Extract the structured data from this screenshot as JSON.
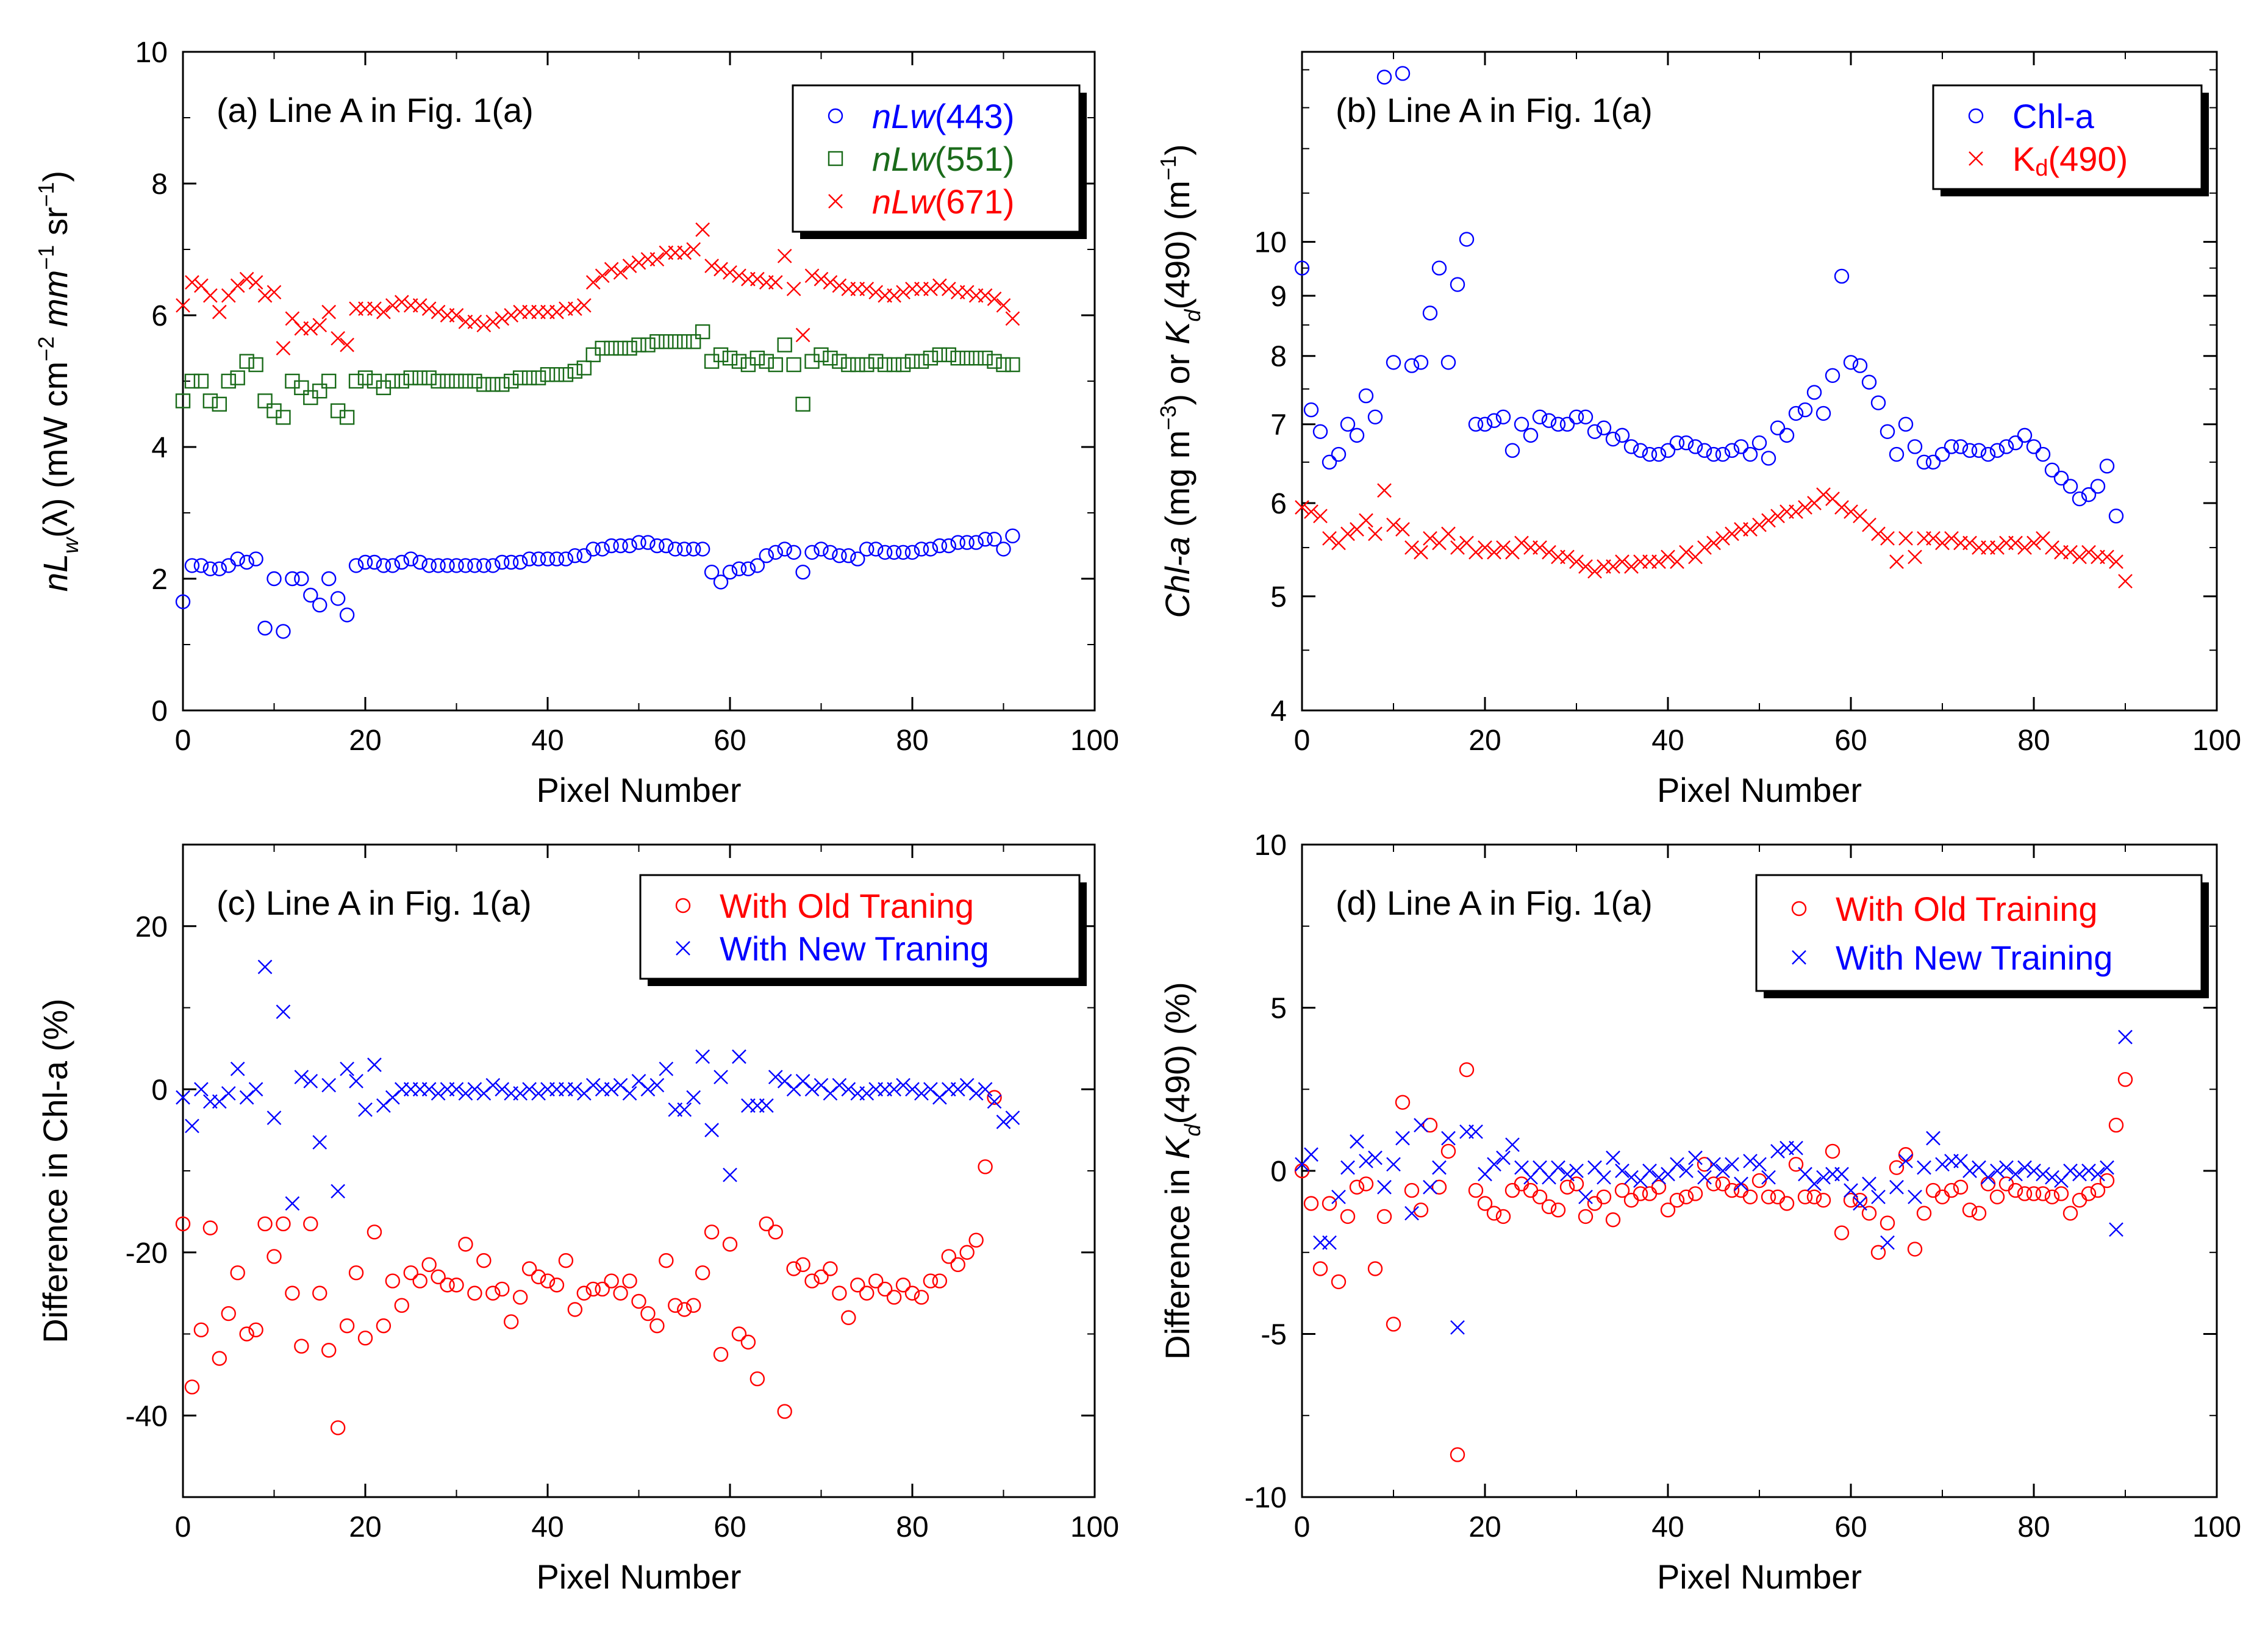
{
  "figure": {
    "panels_order": [
      "a",
      "b",
      "c",
      "d"
    ]
  },
  "chart_data": [
    {
      "id": "a",
      "type": "scatter",
      "title": "(a)  Line A in Fig. 1(a)",
      "xlabel": "Pixel Number",
      "ylabel": "nL_w(λ) (mW cm^-2 mm^-1 sr^-1)",
      "xlim": [
        0,
        100
      ],
      "ylim": [
        0,
        10
      ],
      "yscale": "linear",
      "xticks": [
        0,
        20,
        40,
        60,
        80,
        100
      ],
      "yticks": [
        0,
        2,
        4,
        6,
        8,
        10
      ],
      "grid": false,
      "legend": "top-right",
      "series": [
        {
          "name": "nLw(443)",
          "legend_prefix": "nLw",
          "legend_suffix": "(443)",
          "color": "#0000ff",
          "marker": "circle",
          "values": [
            1.65,
            2.2,
            2.2,
            2.15,
            2.15,
            2.2,
            2.3,
            2.25,
            2.3,
            1.25,
            2.0,
            1.2,
            2.0,
            2.0,
            1.75,
            1.6,
            2.0,
            1.7,
            1.45,
            2.2,
            2.25,
            2.25,
            2.2,
            2.2,
            2.25,
            2.3,
            2.25,
            2.2,
            2.2,
            2.2,
            2.2,
            2.2,
            2.2,
            2.2,
            2.2,
            2.25,
            2.25,
            2.25,
            2.3,
            2.3,
            2.3,
            2.3,
            2.3,
            2.35,
            2.35,
            2.45,
            2.45,
            2.5,
            2.5,
            2.5,
            2.55,
            2.55,
            2.5,
            2.5,
            2.45,
            2.45,
            2.45,
            2.45,
            2.1,
            1.95,
            2.1,
            2.15,
            2.15,
            2.2,
            2.35,
            2.4,
            2.45,
            2.4,
            2.1,
            2.4,
            2.45,
            2.4,
            2.35,
            2.35,
            2.3,
            2.45,
            2.45,
            2.4,
            2.4,
            2.4,
            2.4,
            2.45,
            2.45,
            2.5,
            2.5,
            2.55,
            2.55,
            2.55,
            2.6,
            2.6,
            2.45,
            2.65
          ]
        },
        {
          "name": "nLw(551)",
          "legend_prefix": "nLw",
          "legend_suffix": "(551)",
          "color": "#1a6b1a",
          "marker": "square",
          "values": [
            4.7,
            5.0,
            5.0,
            4.7,
            4.65,
            5.0,
            5.05,
            5.3,
            5.25,
            4.7,
            4.55,
            4.45,
            5.0,
            4.9,
            4.75,
            4.85,
            5.0,
            4.55,
            4.45,
            5.0,
            5.05,
            5.0,
            4.9,
            5.0,
            5.0,
            5.05,
            5.05,
            5.05,
            5.0,
            5.0,
            5.0,
            5.0,
            5.0,
            4.95,
            4.95,
            4.95,
            5.0,
            5.05,
            5.05,
            5.05,
            5.1,
            5.1,
            5.1,
            5.15,
            5.2,
            5.4,
            5.5,
            5.5,
            5.5,
            5.5,
            5.55,
            5.55,
            5.6,
            5.6,
            5.6,
            5.6,
            5.6,
            5.75,
            5.3,
            5.4,
            5.35,
            5.3,
            5.25,
            5.35,
            5.3,
            5.25,
            5.55,
            5.25,
            4.65,
            5.3,
            5.4,
            5.35,
            5.3,
            5.25,
            5.25,
            5.25,
            5.3,
            5.25,
            5.25,
            5.25,
            5.3,
            5.3,
            5.35,
            5.4,
            5.4,
            5.35,
            5.35,
            5.35,
            5.35,
            5.3,
            5.25,
            5.25
          ]
        },
        {
          "name": "nLw(671)",
          "legend_prefix": "nLw",
          "legend_suffix": "(671)",
          "color": "#ff0000",
          "marker": "x",
          "values": [
            6.15,
            6.5,
            6.45,
            6.3,
            6.05,
            6.3,
            6.45,
            6.55,
            6.5,
            6.3,
            6.35,
            5.5,
            5.95,
            5.8,
            5.8,
            5.85,
            6.05,
            5.65,
            5.55,
            6.1,
            6.1,
            6.1,
            6.05,
            6.15,
            6.2,
            6.15,
            6.15,
            6.1,
            6.05,
            6.0,
            6.0,
            5.9,
            5.9,
            5.85,
            5.9,
            5.95,
            6.0,
            6.05,
            6.05,
            6.05,
            6.05,
            6.05,
            6.1,
            6.1,
            6.15,
            6.5,
            6.6,
            6.7,
            6.65,
            6.75,
            6.8,
            6.85,
            6.85,
            6.95,
            6.95,
            6.95,
            7.0,
            7.3,
            6.75,
            6.7,
            6.65,
            6.6,
            6.55,
            6.55,
            6.5,
            6.5,
            6.9,
            6.4,
            5.7,
            6.6,
            6.55,
            6.5,
            6.45,
            6.4,
            6.4,
            6.4,
            6.35,
            6.3,
            6.3,
            6.35,
            6.4,
            6.4,
            6.4,
            6.45,
            6.4,
            6.35,
            6.35,
            6.3,
            6.3,
            6.25,
            6.15,
            5.95
          ]
        }
      ]
    },
    {
      "id": "b",
      "type": "scatter",
      "title": "(b)  Line A in Fig. 1(a)",
      "xlabel": "Pixel Number",
      "ylabel": "Chl-a (mg m^-3) or K_d(490) (m^-1)",
      "xlim": [
        0,
        100
      ],
      "ylim": [
        4,
        14.5
      ],
      "yscale": "log",
      "xticks": [
        0,
        20,
        40,
        60,
        80,
        100
      ],
      "yticks": [
        4,
        5,
        6,
        7,
        8,
        9,
        10
      ],
      "grid": false,
      "legend": "top-right",
      "series": [
        {
          "name": "Chl-a",
          "legend_prefix": "Chl-a",
          "legend_suffix": "",
          "color": "#0000ff",
          "marker": "circle",
          "values": [
            9.5,
            7.2,
            6.9,
            6.5,
            6.6,
            7.0,
            6.85,
            7.4,
            7.1,
            13.8,
            7.9,
            13.9,
            7.85,
            7.9,
            8.7,
            9.5,
            7.9,
            9.2,
            10.05,
            7.0,
            7.0,
            7.05,
            7.1,
            6.65,
            7.0,
            6.85,
            7.1,
            7.05,
            7.0,
            7.0,
            7.1,
            7.1,
            6.9,
            6.95,
            6.8,
            6.85,
            6.7,
            6.65,
            6.6,
            6.6,
            6.65,
            6.75,
            6.75,
            6.7,
            6.65,
            6.6,
            6.6,
            6.65,
            6.7,
            6.6,
            6.75,
            6.55,
            6.95,
            6.85,
            7.15,
            7.2,
            7.45,
            7.15,
            7.7,
            9.35,
            7.9,
            7.85,
            7.6,
            7.3,
            6.9,
            6.6,
            7.0,
            6.7,
            6.5,
            6.5,
            6.6,
            6.7,
            6.7,
            6.65,
            6.65,
            6.6,
            6.65,
            6.7,
            6.75,
            6.85,
            6.7,
            6.6,
            6.4,
            6.3,
            6.2,
            6.05,
            6.1,
            6.2,
            6.45,
            5.85
          ]
        },
        {
          "name": "Kd(490)",
          "legend_prefix": "K",
          "legend_suffix": "(490)",
          "legend_sub": "d",
          "color": "#ff0000",
          "marker": "x",
          "values": [
            5.95,
            5.9,
            5.85,
            5.6,
            5.55,
            5.65,
            5.7,
            5.8,
            5.65,
            6.15,
            5.75,
            5.7,
            5.5,
            5.45,
            5.6,
            5.55,
            5.65,
            5.5,
            5.55,
            5.45,
            5.5,
            5.45,
            5.5,
            5.45,
            5.55,
            5.5,
            5.5,
            5.45,
            5.4,
            5.4,
            5.35,
            5.3,
            5.25,
            5.3,
            5.3,
            5.35,
            5.3,
            5.35,
            5.35,
            5.35,
            5.4,
            5.35,
            5.45,
            5.4,
            5.5,
            5.55,
            5.6,
            5.65,
            5.7,
            5.7,
            5.75,
            5.8,
            5.85,
            5.9,
            5.9,
            5.95,
            6.0,
            6.1,
            6.05,
            5.95,
            5.9,
            5.85,
            5.75,
            5.65,
            5.6,
            5.35,
            5.6,
            5.4,
            5.6,
            5.6,
            5.55,
            5.6,
            5.55,
            5.55,
            5.5,
            5.5,
            5.5,
            5.55,
            5.55,
            5.5,
            5.55,
            5.6,
            5.5,
            5.45,
            5.45,
            5.4,
            5.45,
            5.4,
            5.4,
            5.35,
            5.15
          ]
        }
      ]
    },
    {
      "id": "c",
      "type": "scatter",
      "title": "(c)  Line A in Fig. 1(a)",
      "xlabel": "Pixel Number",
      "ylabel": "Difference in Chl-a (%)",
      "xlim": [
        0,
        100
      ],
      "ylim": [
        -50,
        30
      ],
      "yscale": "linear",
      "xticks": [
        0,
        20,
        40,
        60,
        80,
        100
      ],
      "yticks": [
        -40,
        -20,
        0,
        20
      ],
      "grid": false,
      "legend": "top-right",
      "series": [
        {
          "name": "With Old Traning",
          "legend_prefix": "With Old Traning",
          "legend_suffix": "",
          "color": "#ff0000",
          "marker": "circle",
          "values": [
            -16.5,
            -36.5,
            -29.5,
            -17,
            -33,
            -27.5,
            -22.5,
            -30,
            -29.5,
            -16.5,
            -20.5,
            -16.5,
            -25,
            -31.5,
            -16.5,
            -25,
            -32,
            -41.5,
            -29,
            -22.5,
            -30.5,
            -17.5,
            -29,
            -23.5,
            -26.5,
            -22.5,
            -23.5,
            -21.5,
            -23,
            -24,
            -24,
            -19,
            -25,
            -21,
            -25,
            -24.5,
            -28.5,
            -25.5,
            -22,
            -23,
            -23.5,
            -24,
            -21,
            -27,
            -25,
            -24.5,
            -24.5,
            -23.5,
            -25,
            -23.5,
            -26,
            -27.5,
            -29,
            -21,
            -26.5,
            -27,
            -26.5,
            -22.5,
            -17.5,
            -32.5,
            -19,
            -30,
            -31,
            -35.5,
            -16.5,
            -17.5,
            -39.5,
            -22,
            -21.5,
            -23.5,
            -23,
            -22,
            -25,
            -28,
            -24,
            -25,
            -23.5,
            -24.5,
            -25.5,
            -24,
            -25,
            -25.5,
            -23.5,
            -23.5,
            -20.5,
            -21.5,
            -20,
            -18.5,
            -9.5,
            -1
          ]
        },
        {
          "name": "With New Traning",
          "legend_prefix": "With New Traning",
          "legend_suffix": "",
          "color": "#0000ff",
          "marker": "x",
          "values": [
            -1,
            -4.5,
            0,
            -1.5,
            -1.5,
            -0.5,
            2.5,
            -1,
            0,
            15,
            -3.5,
            9.5,
            -14,
            1.5,
            1,
            -6.5,
            0.5,
            -12.5,
            2.5,
            1,
            -2.5,
            3,
            -2,
            -1,
            0,
            0,
            0,
            0,
            -0.5,
            0,
            0,
            -0.5,
            0,
            -0.5,
            0.5,
            0,
            -0.5,
            -0.5,
            0,
            -0.5,
            0,
            0,
            0,
            0,
            -0.5,
            0.5,
            0,
            0,
            0.5,
            -0.5,
            1,
            0,
            0.5,
            2.5,
            -2.5,
            -2.5,
            -1,
            4,
            -5,
            1.5,
            -10.5,
            4,
            -2,
            -2,
            -2,
            1.5,
            1,
            0,
            1,
            0,
            0.5,
            -0.5,
            0.5,
            0,
            -0.5,
            -0.5,
            0,
            0,
            0,
            0.5,
            0,
            -0.5,
            0,
            -1,
            0,
            0,
            0.5,
            -0.5,
            0,
            -1.5,
            -4,
            -3.5
          ]
        }
      ]
    },
    {
      "id": "d",
      "type": "scatter",
      "title": "(d)  Line A in Fig. 1(a)",
      "xlabel": "Pixel Number",
      "ylabel": "Difference in K_d(490) (%)",
      "xlim": [
        0,
        100
      ],
      "ylim": [
        -10,
        10
      ],
      "yscale": "linear",
      "xticks": [
        0,
        20,
        40,
        60,
        80,
        100
      ],
      "yticks": [
        -10,
        -5,
        0,
        5,
        10
      ],
      "grid": false,
      "legend": "top-right",
      "series": [
        {
          "name": "With Old Training",
          "legend_prefix": "With Old Training",
          "legend_suffix": "",
          "color": "#ff0000",
          "marker": "circle",
          "values": [
            0,
            -1,
            -3,
            -1,
            -3.4,
            -1.4,
            -0.5,
            -0.4,
            -3,
            -1.4,
            -4.7,
            2.1,
            -0.6,
            -1.2,
            1.4,
            -0.5,
            0.6,
            -8.7,
            3.1,
            -0.6,
            -1,
            -1.3,
            -1.4,
            -0.6,
            -0.4,
            -0.6,
            -0.8,
            -1.1,
            -1.2,
            -0.5,
            -0.4,
            -1.4,
            -1,
            -0.8,
            -1.5,
            -0.6,
            -0.9,
            -0.7,
            -0.7,
            -0.5,
            -1.2,
            -0.9,
            -0.8,
            -0.7,
            0.2,
            -0.4,
            -0.4,
            -0.6,
            -0.6,
            -0.8,
            -0.3,
            -0.8,
            -0.8,
            -1,
            0.2,
            -0.8,
            -0.8,
            -0.9,
            0.6,
            -1.9,
            -0.9,
            -0.9,
            -1.3,
            -2.5,
            -1.6,
            0.1,
            0.5,
            -2.4,
            -1.3,
            -0.6,
            -0.8,
            -0.6,
            -0.5,
            -1.2,
            -1.3,
            -0.4,
            -0.8,
            -0.4,
            -0.6,
            -0.7,
            -0.7,
            -0.7,
            -0.8,
            -0.7,
            -1.3,
            -0.9,
            -0.7,
            -0.6,
            -0.3,
            1.4,
            2.8
          ]
        },
        {
          "name": "With New Training",
          "legend_prefix": "With New Training",
          "legend_suffix": "",
          "color": "#0000ff",
          "marker": "x",
          "values": [
            0.2,
            0.5,
            -2.2,
            -2.2,
            -0.8,
            0.1,
            0.9,
            0.3,
            0.4,
            -0.5,
            0.2,
            1,
            -1.3,
            1.4,
            -0.5,
            0.1,
            1,
            -4.8,
            1.2,
            1.2,
            -0.1,
            0.2,
            0.4,
            0.8,
            0.1,
            -0.2,
            0.1,
            -0.2,
            0.1,
            -0.1,
            0,
            -0.8,
            0.1,
            -0.2,
            0.4,
            0,
            -0.2,
            -0.3,
            0,
            -0.2,
            -0.1,
            0.2,
            0,
            0.4,
            -0.2,
            0.2,
            0,
            0.2,
            -0.4,
            0.3,
            0.2,
            -0.2,
            0.6,
            0.7,
            0.7,
            -0.1,
            -0.4,
            -0.2,
            -0.1,
            -0.1,
            -0.6,
            -1,
            -0.4,
            -0.8,
            -2.2,
            -0.5,
            0.3,
            -0.8,
            0.1,
            1,
            0.2,
            0.3,
            0.3,
            0,
            0.1,
            -0.2,
            0,
            0.1,
            -0.1,
            0.1,
            0,
            -0.1,
            -0.2,
            -0.3,
            0,
            -0.1,
            0,
            -0.1,
            0.1,
            -1.8,
            4.1
          ]
        }
      ]
    }
  ]
}
